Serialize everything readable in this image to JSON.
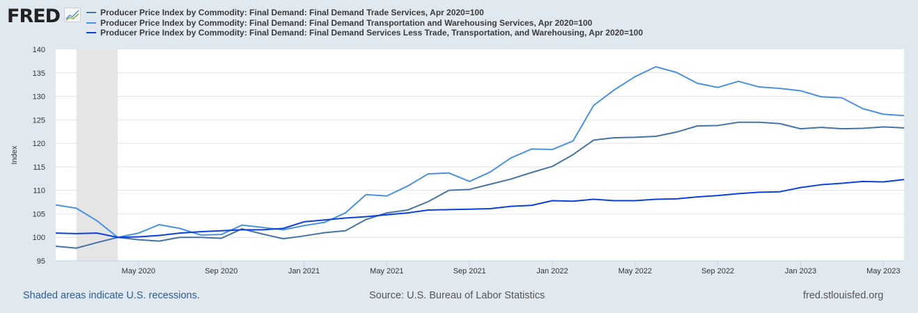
{
  "logo": {
    "text": "FRED"
  },
  "chart_data": {
    "type": "line",
    "title": "",
    "ylabel": "Index",
    "xlabel": "",
    "ylim": [
      95,
      140
    ],
    "yticks": [
      95,
      100,
      105,
      110,
      115,
      120,
      125,
      130,
      135,
      140
    ],
    "xstart": "2020-01",
    "xticks": [
      {
        "label": "May 2020",
        "index": 4
      },
      {
        "label": "Sep 2020",
        "index": 8
      },
      {
        "label": "Jan 2021",
        "index": 12
      },
      {
        "label": "May 2021",
        "index": 16
      },
      {
        "label": "Sep 2021",
        "index": 20
      },
      {
        "label": "Jan 2022",
        "index": 24
      },
      {
        "label": "May 2022",
        "index": 28
      },
      {
        "label": "Sep 2022",
        "index": 32
      },
      {
        "label": "Jan 2023",
        "index": 36
      },
      {
        "label": "May 2023",
        "index": 40
      }
    ],
    "recession": {
      "start_index": 1,
      "end_index": 3
    },
    "grid": true,
    "legend_position": "top",
    "series": [
      {
        "name": "Producer Price Index by Commodity: Final Demand: Final Demand Trade Services, Apr 2020=100",
        "color": "#4572a7",
        "values": [
          98.1,
          97.7,
          98.9,
          100,
          99.5,
          99.2,
          100,
          100,
          99.8,
          101.8,
          100.7,
          99.7,
          100.3,
          101,
          101.4,
          103.8,
          105.2,
          105.8,
          107.6,
          110,
          110.2,
          111.3,
          112.4,
          113.8,
          115.1,
          117.6,
          120.7,
          121.2,
          121.3,
          121.5,
          122.4,
          123.7,
          123.8,
          124.5,
          124.5,
          124.2,
          123.1,
          123.4,
          123.1,
          123.2,
          123.5,
          123.3
        ]
      },
      {
        "name": "Producer Price Index by Commodity: Final Demand: Final Demand Transportation and Warehousing Services, Apr 2020=100",
        "color": "#4a90e2",
        "values": [
          106.9,
          106.2,
          103.5,
          100,
          100.9,
          102.7,
          101.9,
          100.5,
          100.6,
          102.6,
          102.1,
          101.6,
          102.5,
          103.2,
          105.2,
          109.1,
          108.8,
          110.9,
          113.5,
          113.7,
          111.9,
          113.9,
          116.9,
          118.8,
          118.7,
          120.5,
          128.1,
          131.4,
          134.2,
          136.3,
          135.1,
          132.8,
          131.9,
          133.2,
          132,
          131.7,
          131.2,
          129.9,
          129.7,
          127.4,
          126.2,
          125.9
        ]
      },
      {
        "name": "Producer Price Index by Commodity: Final Demand: Final Demand Services Less Trade, Transportation, and Warehousing, Apr 2020=100",
        "color": "#0a3fe0",
        "values": [
          100.9,
          100.8,
          100.9,
          100,
          100.1,
          100.4,
          100.9,
          101.2,
          101.4,
          101.6,
          101.6,
          101.9,
          103.3,
          103.7,
          104.1,
          104.4,
          104.8,
          105.2,
          105.8,
          105.9,
          106,
          106.1,
          106.6,
          106.8,
          107.8,
          107.7,
          108.1,
          107.8,
          107.8,
          108.1,
          108.2,
          108.6,
          108.9,
          109.3,
          109.6,
          109.7,
          110.6,
          111.2,
          111.5,
          111.9,
          111.8,
          112.3
        ]
      }
    ]
  },
  "footer": {
    "recession_note": "Shaded areas indicate U.S. recessions.",
    "source": "Source: U.S. Bureau of Labor Statistics",
    "site": "fred.stlouisfed.org"
  }
}
